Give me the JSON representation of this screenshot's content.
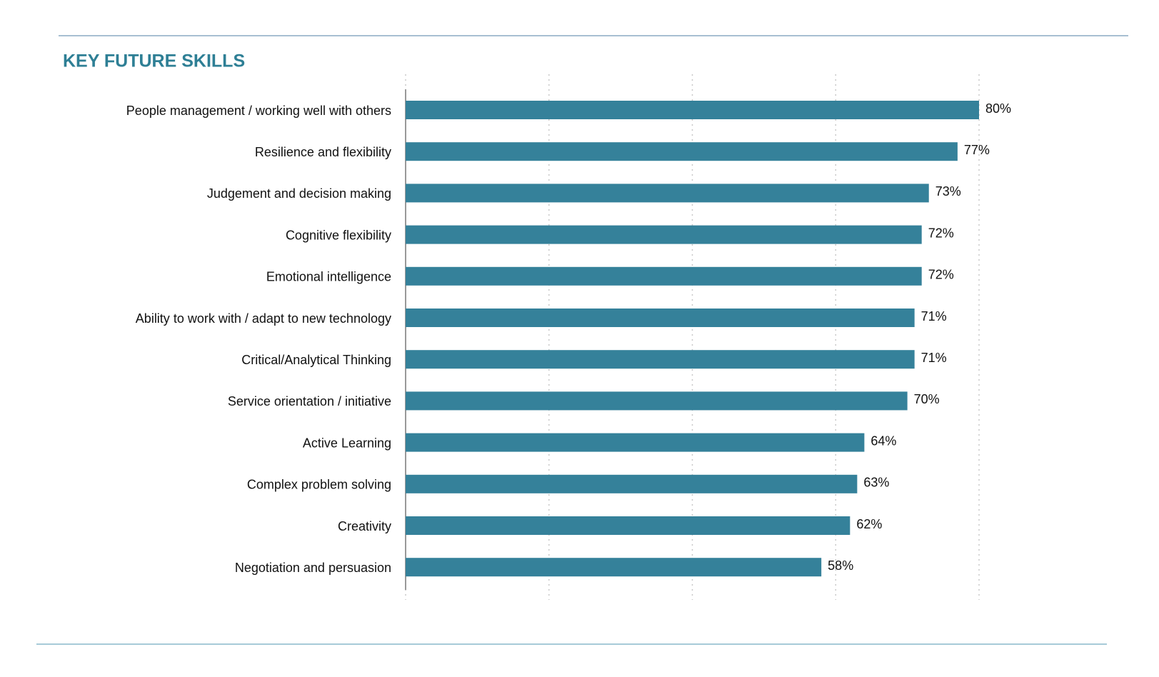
{
  "chart_data": {
    "type": "bar",
    "orientation": "horizontal",
    "title": "KEY FUTURE SKILLS",
    "categories": [
      "People management / working well with others",
      "Resilience and flexibility",
      "Judgement and decision making",
      "Cognitive flexibility",
      "Emotional intelligence",
      "Ability to work with / adapt to new technology",
      "Critical/Analytical Thinking",
      "Service orientation / initiative",
      "Active Learning",
      "Complex problem solving",
      "Creativity",
      "Negotiation and persuasion"
    ],
    "values": [
      80,
      77,
      73,
      72,
      72,
      71,
      71,
      70,
      64,
      63,
      62,
      58
    ],
    "value_labels": [
      "80%",
      "77%",
      "73%",
      "72%",
      "72%",
      "71%",
      "71%",
      "70%",
      "64%",
      "63%",
      "62%",
      "58%"
    ],
    "color": "#35819a",
    "xlim": [
      0,
      80
    ],
    "xticks": [
      0,
      20,
      40,
      60,
      80
    ],
    "grid": true
  }
}
